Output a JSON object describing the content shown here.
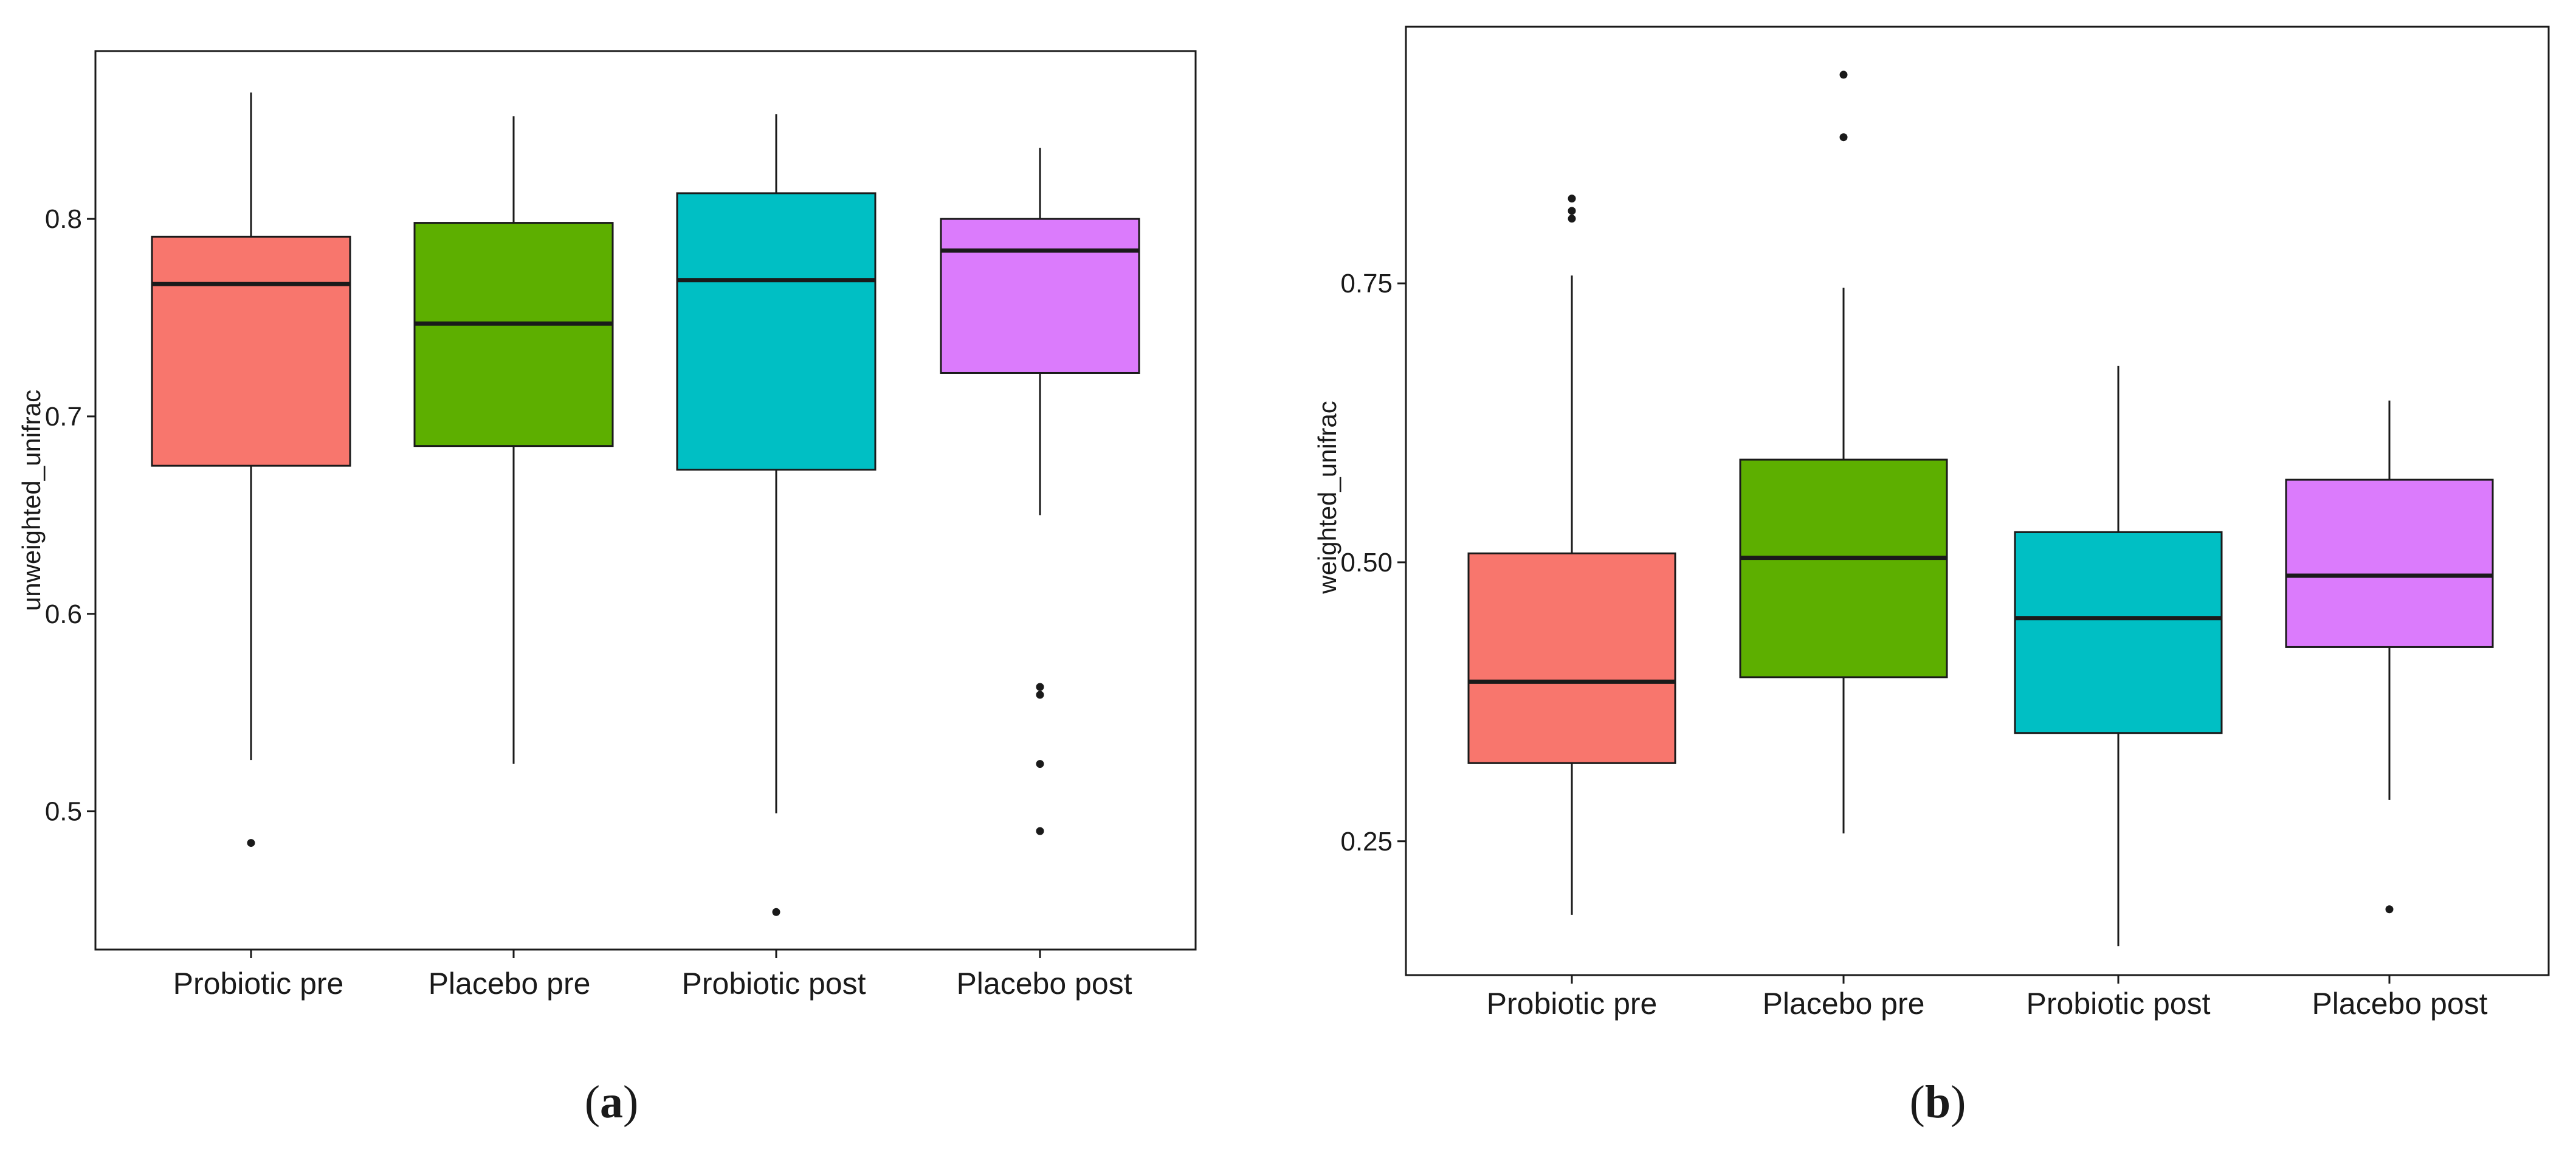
{
  "colors": {
    "probiotic_pre": "#F8766D",
    "placebo_pre": "#5DAF00",
    "probiotic_post": "#00BFC4",
    "placebo_post": "#DB7BFC",
    "frame": "#1a1a1a"
  },
  "chart_data": [
    {
      "type": "box",
      "panel_label": "a",
      "title": "",
      "xlabel": "",
      "ylabel": "unweighted_unifrac",
      "ylim": [
        0.43,
        0.885
      ],
      "yticks": [
        0.5,
        0.6,
        0.7,
        0.8
      ],
      "ytick_labels": [
        "0.5",
        "0.6",
        "0.7",
        "0.8"
      ],
      "grid": false,
      "legend": "none",
      "categories": [
        "Probiotic pre",
        "Placebo pre",
        "Probiotic post",
        "Placebo post"
      ],
      "boxes": [
        {
          "name": "Probiotic pre",
          "whisker_low": 0.526,
          "q1": 0.675,
          "median": 0.767,
          "q3": 0.791,
          "whisker_high": 0.864,
          "outliers": [
            0.484
          ]
        },
        {
          "name": "Placebo pre",
          "whisker_low": 0.524,
          "q1": 0.685,
          "median": 0.747,
          "q3": 0.798,
          "whisker_high": 0.852,
          "outliers": []
        },
        {
          "name": "Probiotic post",
          "whisker_low": 0.499,
          "q1": 0.673,
          "median": 0.769,
          "q3": 0.813,
          "whisker_high": 0.853,
          "outliers": [
            0.449
          ]
        },
        {
          "name": "Placebo post",
          "whisker_low": 0.65,
          "q1": 0.722,
          "median": 0.784,
          "q3": 0.8,
          "whisker_high": 0.836,
          "outliers": [
            0.563,
            0.559,
            0.524,
            0.49
          ]
        }
      ]
    },
    {
      "type": "box",
      "panel_label": "b",
      "title": "",
      "xlabel": "",
      "ylabel": "weighted_unifrac",
      "ylim": [
        0.13,
        0.98
      ],
      "yticks": [
        0.25,
        0.5,
        0.75
      ],
      "ytick_labels": [
        "0.25",
        "0.50",
        "0.75"
      ],
      "grid": false,
      "legend": "none",
      "categories": [
        "Probiotic pre",
        "Placebo pre",
        "Probiotic post",
        "Placebo post"
      ],
      "boxes": [
        {
          "name": "Probiotic pre",
          "whisker_low": 0.184,
          "q1": 0.32,
          "median": 0.393,
          "q3": 0.508,
          "whisker_high": 0.757,
          "outliers": [
            0.826,
            0.815,
            0.808
          ]
        },
        {
          "name": "Placebo pre",
          "whisker_low": 0.257,
          "q1": 0.397,
          "median": 0.504,
          "q3": 0.592,
          "whisker_high": 0.746,
          "outliers": [
            0.937,
            0.881
          ]
        },
        {
          "name": "Probiotic post",
          "whisker_low": 0.156,
          "q1": 0.347,
          "median": 0.45,
          "q3": 0.527,
          "whisker_high": 0.676,
          "outliers": []
        },
        {
          "name": "Placebo post",
          "whisker_low": 0.287,
          "q1": 0.424,
          "median": 0.488,
          "q3": 0.574,
          "whisker_high": 0.645,
          "outliers": [
            0.189
          ]
        }
      ]
    }
  ]
}
